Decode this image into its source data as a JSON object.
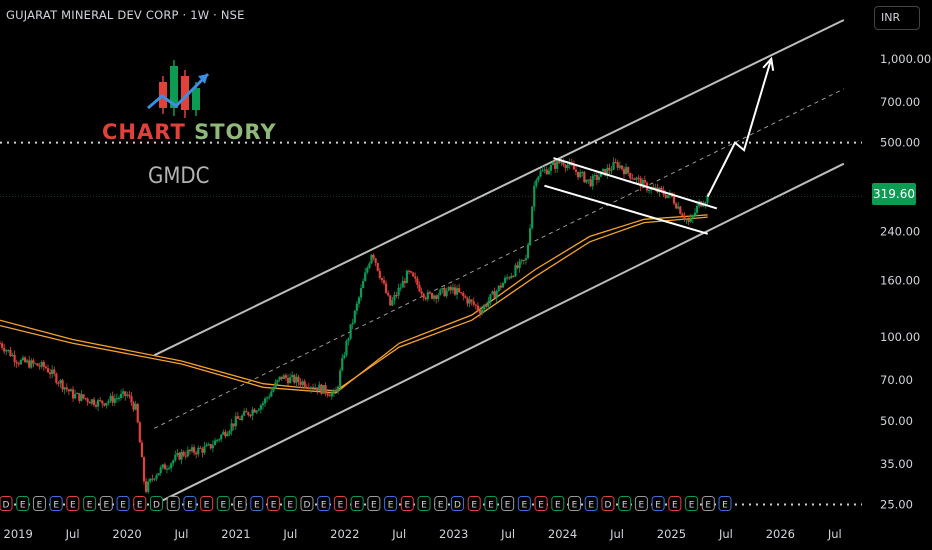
{
  "header": {
    "title": "GUJARAT MINERAL DEV CORP · 1W · NSE",
    "currency": "INR"
  },
  "branding": {
    "logo_text_a": "CHART ",
    "logo_text_b": "STORY",
    "ticker": "GMDC"
  },
  "colors": {
    "background": "#000000",
    "up_candle": "#0c9b53",
    "down_candle": "#e0413b",
    "channel": "#bdbdbd",
    "moving_average": "#f7a12b",
    "arrow": "#ffffff",
    "price_tag": "#0c9b53"
  },
  "chart_data": {
    "type": "candlestick",
    "y_scale": "log",
    "ylim": [
      22,
      1450
    ],
    "y_ticks": [
      {
        "value": 1000,
        "label": "1,000.00"
      },
      {
        "value": 700,
        "label": "700.00"
      },
      {
        "value": 500,
        "label": "500.00"
      },
      {
        "value": 240,
        "label": "240.00"
      },
      {
        "value": 160,
        "label": "160.00"
      },
      {
        "value": 100,
        "label": "100.00"
      },
      {
        "value": 70,
        "label": "70.00"
      },
      {
        "value": 50,
        "label": "50.00"
      },
      {
        "value": 35,
        "label": "35.00"
      },
      {
        "value": 25,
        "label": "25.00"
      }
    ],
    "x_range": [
      "2018-11",
      "2026-10"
    ],
    "x_ticks": [
      {
        "date": "2019-01",
        "label": "2019"
      },
      {
        "date": "2019-07",
        "label": "Jul"
      },
      {
        "date": "2020-01",
        "label": "2020"
      },
      {
        "date": "2020-07",
        "label": "Jul"
      },
      {
        "date": "2021-01",
        "label": "2021"
      },
      {
        "date": "2021-07",
        "label": "Jul"
      },
      {
        "date": "2022-01",
        "label": "2022"
      },
      {
        "date": "2022-07",
        "label": "Jul"
      },
      {
        "date": "2023-01",
        "label": "2023"
      },
      {
        "date": "2023-07",
        "label": "Jul"
      },
      {
        "date": "2024-01",
        "label": "2024"
      },
      {
        "date": "2024-07",
        "label": "Jul"
      },
      {
        "date": "2025-01",
        "label": "2025"
      },
      {
        "date": "2025-07",
        "label": "Jul"
      },
      {
        "date": "2026-01",
        "label": "2026"
      },
      {
        "date": "2026-07",
        "label": "Jul"
      }
    ],
    "last_price": "319.60",
    "last_price_value": 319.6,
    "horizontal_level": 500,
    "price_path": [
      [
        "2018-11",
        95
      ],
      [
        "2019-01",
        82
      ],
      [
        "2019-04",
        78
      ],
      [
        "2019-07",
        62
      ],
      [
        "2019-10",
        58
      ],
      [
        "2020-01",
        62
      ],
      [
        "2020-02",
        55
      ],
      [
        "2020-03",
        28
      ],
      [
        "2020-04",
        32
      ],
      [
        "2020-07",
        38
      ],
      [
        "2020-10",
        40
      ],
      [
        "2021-01",
        50
      ],
      [
        "2021-04",
        58
      ],
      [
        "2021-06",
        72
      ],
      [
        "2021-09",
        68
      ],
      [
        "2021-12",
        62
      ],
      [
        "2022-01",
        90
      ],
      [
        "2022-04",
        205
      ],
      [
        "2022-06",
        130
      ],
      [
        "2022-08",
        170
      ],
      [
        "2022-10",
        140
      ],
      [
        "2023-01",
        148
      ],
      [
        "2023-04",
        125
      ],
      [
        "2023-07",
        165
      ],
      [
        "2023-09",
        190
      ],
      [
        "2023-10",
        380
      ],
      [
        "2024-01",
        430
      ],
      [
        "2024-04",
        360
      ],
      [
        "2024-07",
        420
      ],
      [
        "2024-10",
        350
      ],
      [
        "2025-01",
        320
      ],
      [
        "2025-03",
        255
      ],
      [
        "2025-04",
        300
      ],
      [
        "2025-05",
        320
      ]
    ],
    "moving_averages": [
      {
        "name": "",
        "points": [
          [
            "2018-11",
            110
          ],
          [
            "2019-07",
            95
          ],
          [
            "2020-07",
            80
          ],
          [
            "2021-04",
            66
          ],
          [
            "2021-12",
            63
          ],
          [
            "2022-07",
            95
          ],
          [
            "2023-03",
            120
          ],
          [
            "2023-10",
            175
          ],
          [
            "2024-04",
            230
          ],
          [
            "2024-10",
            265
          ],
          [
            "2025-05",
            275
          ]
        ]
      },
      {
        "name": "",
        "points": [
          [
            "2018-11",
            115
          ],
          [
            "2019-07",
            98
          ],
          [
            "2020-07",
            82
          ],
          [
            "2021-04",
            68
          ],
          [
            "2021-12",
            64
          ],
          [
            "2022-07",
            92
          ],
          [
            "2023-03",
            115
          ],
          [
            "2023-10",
            165
          ],
          [
            "2024-04",
            220
          ],
          [
            "2024-10",
            258
          ],
          [
            "2025-05",
            270
          ]
        ]
      }
    ],
    "channel_upper": [
      [
        "2020-04",
        86
      ],
      [
        "2026-08",
        1380
      ]
    ],
    "channel_mid": [
      [
        "2020-04",
        47
      ],
      [
        "2026-08",
        780
      ]
    ],
    "channel_lower": [
      [
        "2020-04",
        25
      ],
      [
        "2026-08",
        420
      ]
    ],
    "flag_upper": [
      [
        "2023-12",
        440
      ],
      [
        "2025-06",
        290
      ]
    ],
    "flag_lower": [
      [
        "2023-11",
        350
      ],
      [
        "2025-05",
        235
      ]
    ],
    "projection": [
      [
        "2025-05",
        320
      ],
      [
        "2025-08",
        500
      ],
      [
        "2025-09",
        470
      ],
      [
        "2025-12",
        1000
      ]
    ],
    "event_markers": {
      "count": 44,
      "labels": [
        "E",
        "D"
      ]
    }
  }
}
